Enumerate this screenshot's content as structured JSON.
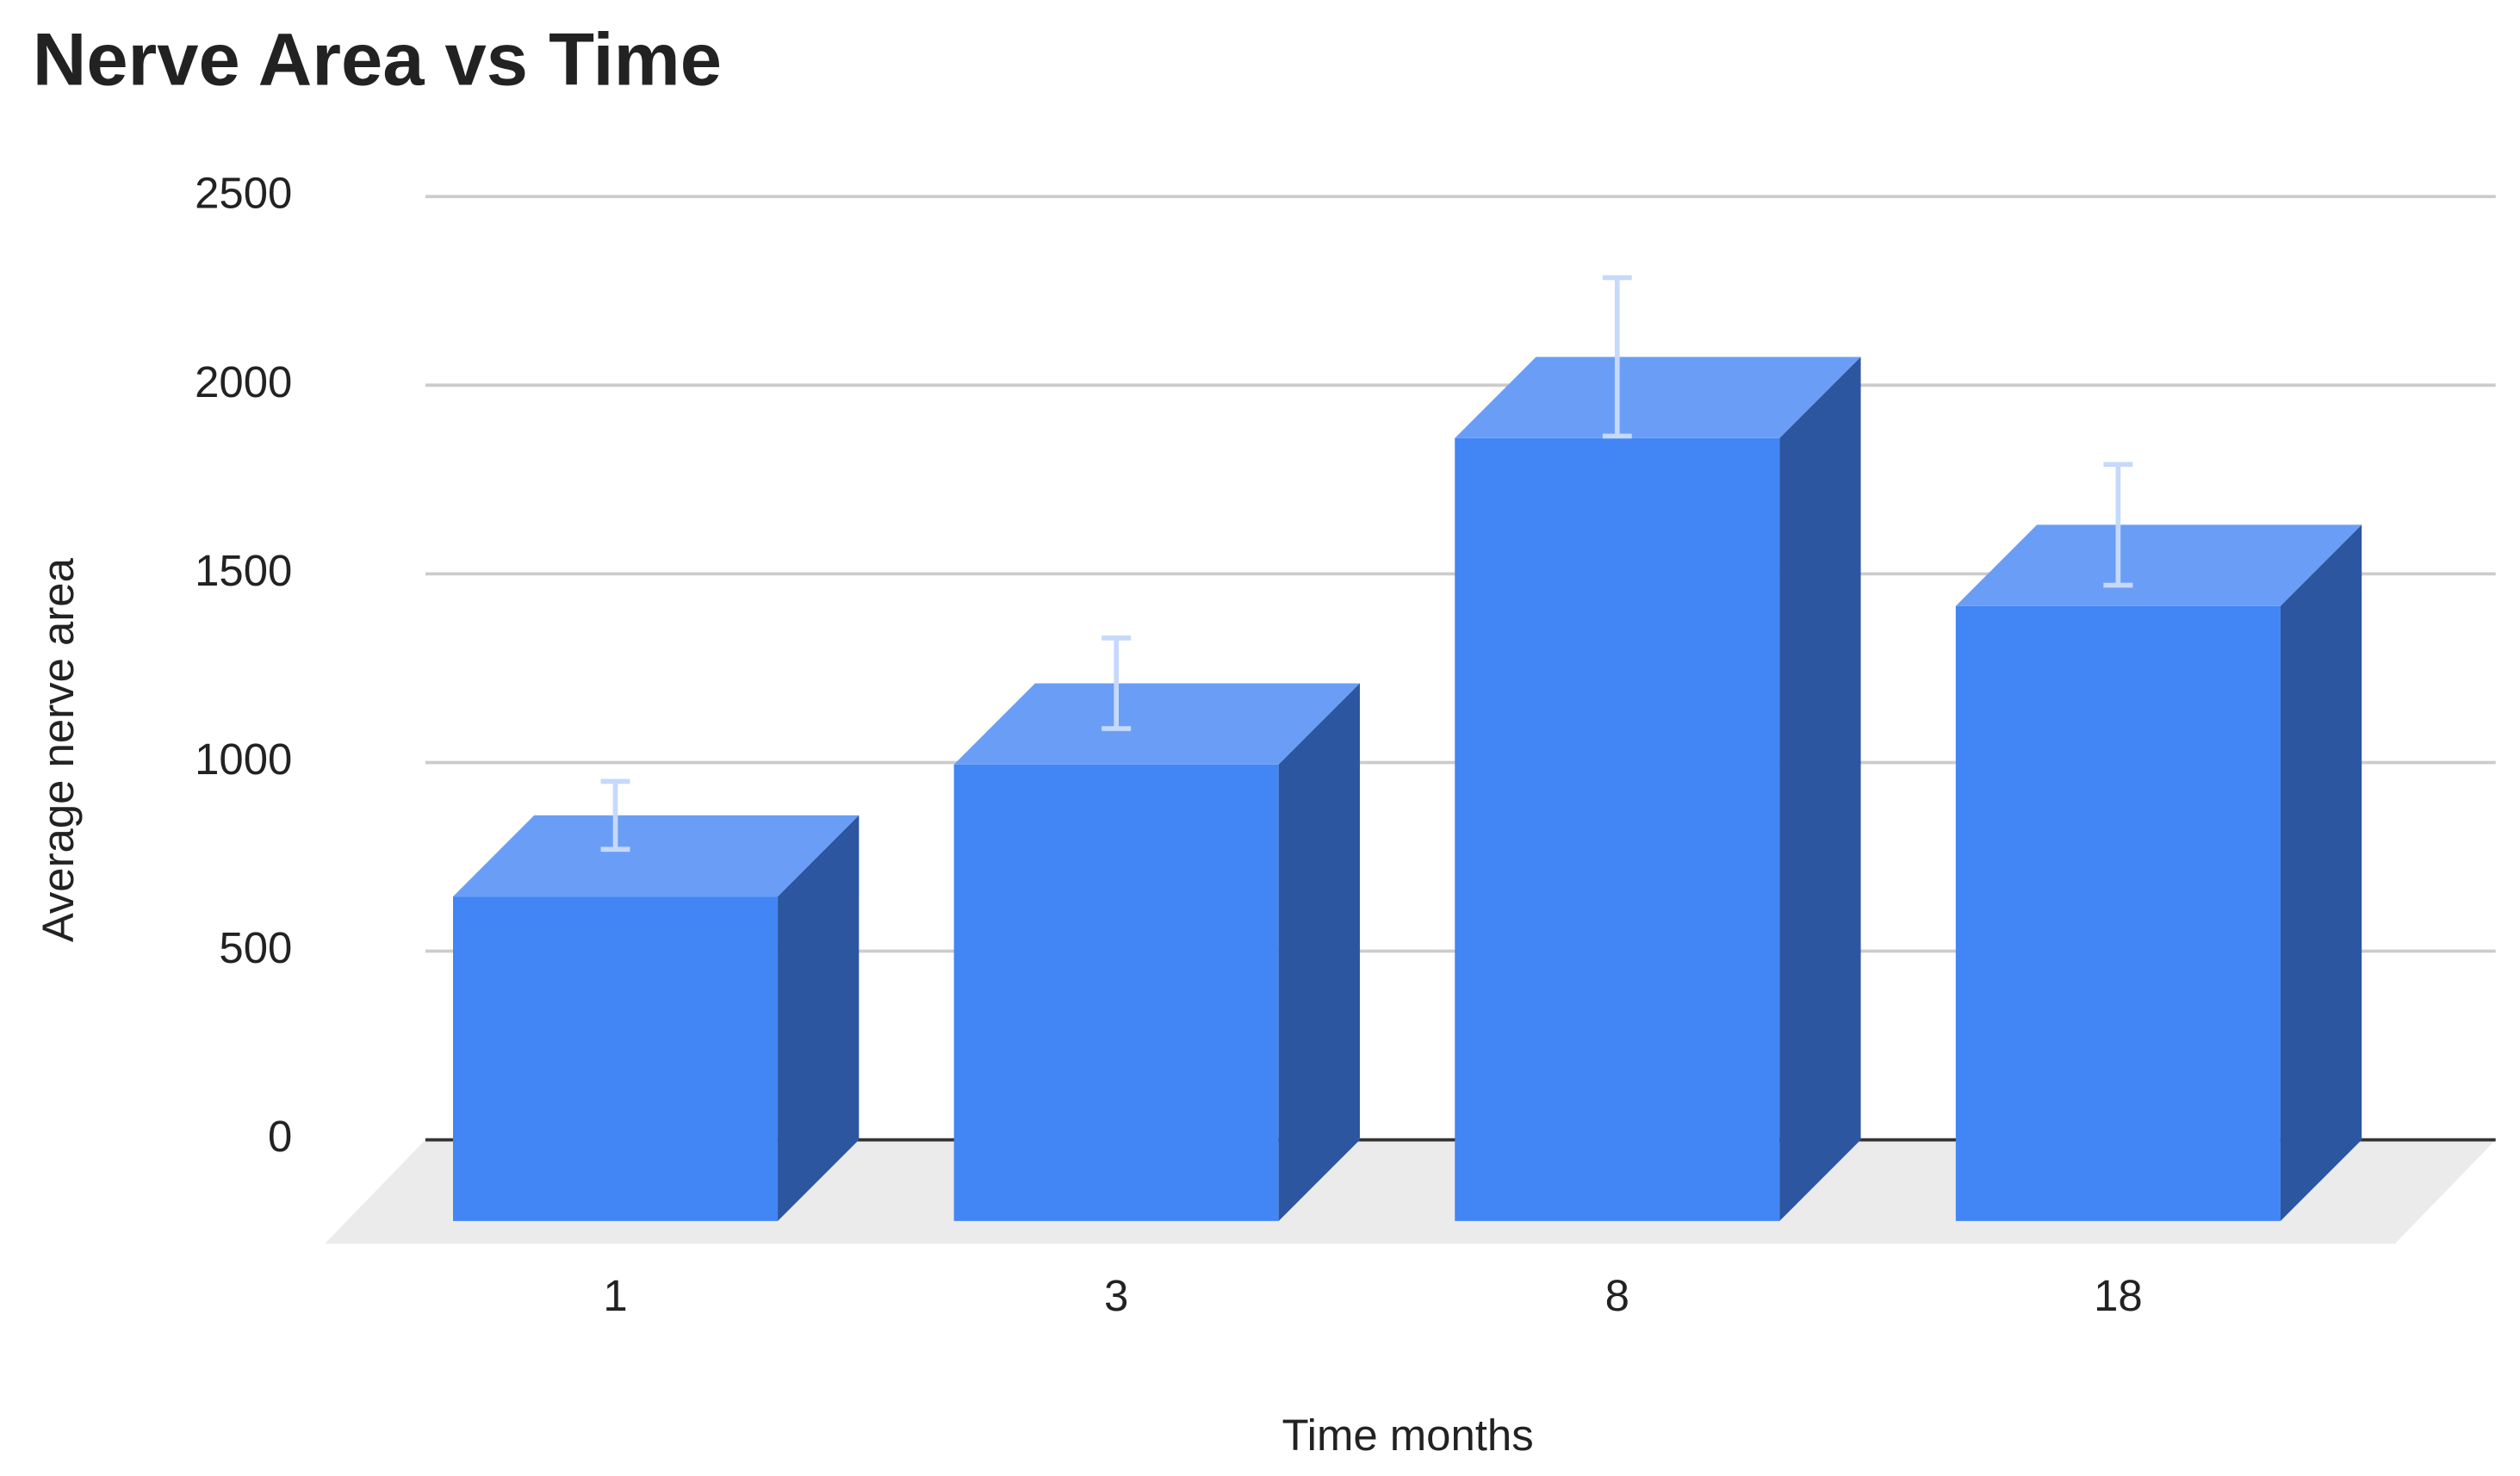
{
  "chart_data": {
    "type": "bar3d",
    "title": "Nerve Area vs Time",
    "x_label": "Time months",
    "y_label": "Average nerve area",
    "categories": [
      "1",
      "3",
      "8",
      "18"
    ],
    "values": [
      860,
      1210,
      2075,
      1630
    ],
    "errors": [
      90,
      120,
      210,
      160
    ],
    "color": "#4285f4",
    "ylim": [
      0,
      2500
    ],
    "yticks": [
      0,
      500,
      1000,
      1500,
      2000,
      2500
    ],
    "grid": true
  }
}
